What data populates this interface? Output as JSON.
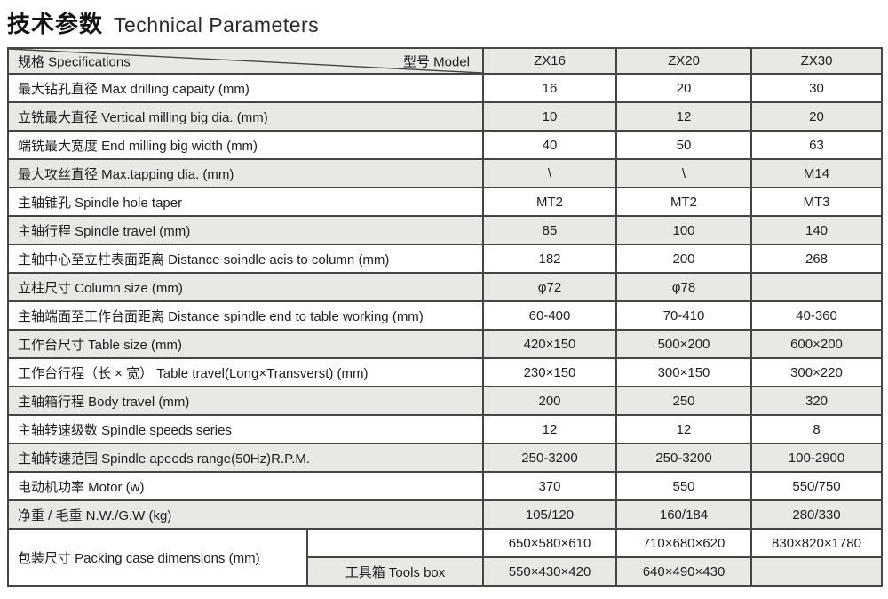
{
  "title": {
    "zh": "技术参数",
    "en": "Technical Parameters"
  },
  "colors": {
    "row_alt": "#e9e8e5",
    "border": "#454545",
    "text": "#1e1e1e"
  },
  "table": {
    "corner_left": "规格 Specifications",
    "corner_right": "型号  Model",
    "models": [
      "ZX16",
      "ZX20",
      "ZX30"
    ],
    "rows": [
      {
        "label": "最大钻孔直径  Max drilling capaity (mm)",
        "values": [
          "16",
          "20",
          "30"
        ]
      },
      {
        "label": "立铣最大直径  Vertical milling big dia. (mm)",
        "values": [
          "10",
          "12",
          "20"
        ]
      },
      {
        "label": "端铣最大宽度  End milling big width (mm)",
        "values": [
          "40",
          "50",
          "63"
        ]
      },
      {
        "label": "最大攻丝直径  Max.tapping dia. (mm)",
        "values": [
          "\\",
          "\\",
          "M14"
        ]
      },
      {
        "label": "主轴锥孔  Spindle hole taper",
        "values": [
          "MT2",
          "MT2",
          "MT3"
        ]
      },
      {
        "label": "主轴行程  Spindle travel (mm)",
        "values": [
          "85",
          "100",
          "140"
        ]
      },
      {
        "label": "主轴中心至立柱表面距离  Distance soindle acis to column (mm)",
        "values": [
          "182",
          "200",
          "268"
        ]
      },
      {
        "label": "立柱尺寸  Column size (mm)",
        "values": [
          "φ72",
          "φ78",
          ""
        ]
      },
      {
        "label": "主轴端面至工作台面距离  Distance spindle end to table working (mm)",
        "values": [
          "60-400",
          "70-410",
          "40-360"
        ]
      },
      {
        "label": "工作台尺寸  Table size (mm)",
        "values": [
          "420×150",
          "500×200",
          "600×200"
        ]
      },
      {
        "label": "工作台行程（长 × 宽）  Table travel(Long×Transverst) (mm)",
        "values": [
          "230×150",
          "300×150",
          "300×220"
        ]
      },
      {
        "label": "主轴箱行程  Body travel (mm)",
        "values": [
          "200",
          "250",
          "320"
        ]
      },
      {
        "label": "主轴转速级数  Spindle speeds series",
        "values": [
          "12",
          "12",
          "8"
        ]
      },
      {
        "label": "主轴转速范围  Spindle apeeds range(50Hz)R.P.M.",
        "values": [
          "250-3200",
          "250-3200",
          "100-2900"
        ]
      },
      {
        "label": "电动机功率  Motor (w)",
        "values": [
          "370",
          "550",
          "550/750"
        ]
      },
      {
        "label": "净重 / 毛重  N.W./G.W (kg)",
        "values": [
          "105/120",
          "160/184",
          "280/330"
        ]
      }
    ],
    "packing": {
      "label": "包装尺寸  Packing case dimensions (mm)",
      "rows": [
        {
          "sublabel": "",
          "values": [
            "650×580×610",
            "710×680×620",
            "830×820×1780"
          ]
        },
        {
          "sublabel": "工具箱 Tools box",
          "values": [
            "550×430×420",
            "640×490×430",
            ""
          ]
        }
      ]
    }
  }
}
